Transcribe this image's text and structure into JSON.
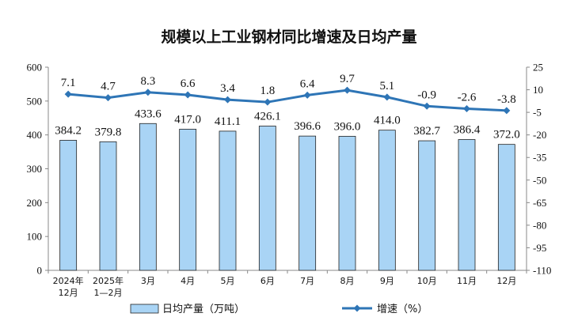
{
  "chart_data": {
    "type": "bar",
    "title": "规模以上工业钢材同比增速及日均产量",
    "categories": [
      [
        "2024年",
        "12月"
      ],
      [
        "2025年",
        "1—2月"
      ],
      [
        "3月"
      ],
      [
        "4月"
      ],
      [
        "5月"
      ],
      [
        "6月"
      ],
      [
        "7月"
      ],
      [
        "8月"
      ],
      [
        "9月"
      ],
      [
        "10月"
      ],
      [
        "11月"
      ],
      [
        "12月"
      ]
    ],
    "series": [
      {
        "name": "日均产量（万吨）",
        "type": "bar",
        "axis": "left",
        "color": "#a9d4f5",
        "values": [
          384.2,
          379.8,
          433.6,
          417.0,
          411.1,
          426.1,
          396.6,
          396.0,
          414.0,
          382.7,
          386.4,
          372.0
        ],
        "labels": [
          "384.2",
          "379.8",
          "433.6",
          "417.0",
          "411.1",
          "426.1",
          "396.6",
          "396.0",
          "414.0",
          "382.7",
          "386.4",
          "372.0"
        ]
      },
      {
        "name": "增速（%）",
        "type": "line",
        "axis": "right",
        "color": "#2e75b6",
        "values": [
          7.1,
          4.7,
          8.3,
          6.6,
          3.4,
          1.8,
          6.4,
          9.7,
          5.1,
          -0.9,
          -2.6,
          -3.8
        ],
        "labels": [
          "7.1",
          "4.7",
          "8.3",
          "6.6",
          "3.4",
          "1.8",
          "6.4",
          "9.7",
          "5.1",
          "-0.9",
          "-2.6",
          "-3.8"
        ]
      }
    ],
    "y_left": {
      "min": 0,
      "max": 600,
      "ticks": [
        "0",
        "100",
        "200",
        "300",
        "400",
        "500",
        "600"
      ]
    },
    "y_right": {
      "min": -110,
      "max": 25,
      "ticks": [
        "25",
        "10",
        "-5",
        "-20",
        "-35",
        "-50",
        "-65",
        "-80",
        "-95",
        "-110"
      ]
    },
    "legend": "bottom",
    "grid": false
  }
}
